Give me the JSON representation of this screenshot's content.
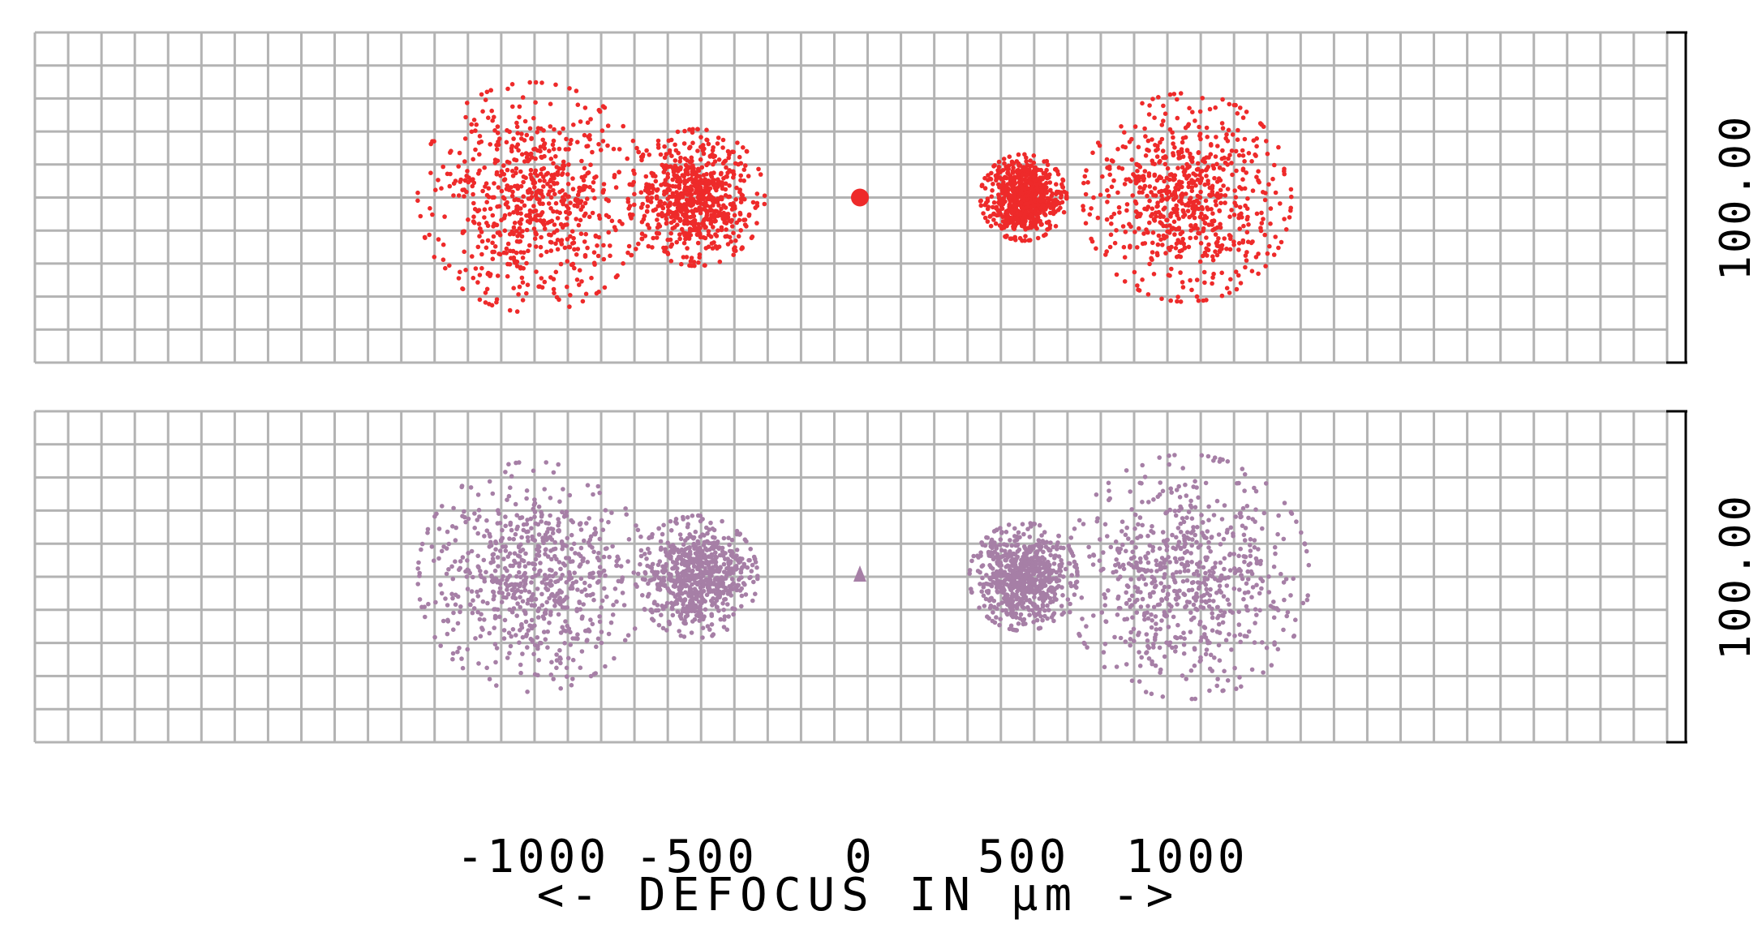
{
  "chart_data": {
    "type": "scatter",
    "xlabel": "<- DEFOCUS IN μm ->",
    "x_ticks": [
      -1000,
      -500,
      0,
      500,
      1000
    ],
    "x_tick_labels": [
      "-1000",
      "-500",
      "0",
      "500",
      "1000"
    ],
    "panels": [
      {
        "scale_label": "100.00",
        "color": "#ee2a2a",
        "spots": [
          {
            "defocus": -1000,
            "spread": 160
          },
          {
            "defocus": -500,
            "spread": 95
          },
          {
            "defocus": 0,
            "spread": 0
          },
          {
            "defocus": 500,
            "spread": 60
          },
          {
            "defocus": 1000,
            "spread": 145
          }
        ]
      },
      {
        "scale_label": "100.00",
        "color": "#a67fa6",
        "spots": [
          {
            "defocus": -1000,
            "spread": 160
          },
          {
            "defocus": -500,
            "spread": 85
          },
          {
            "defocus": 0,
            "spread": 0
          },
          {
            "defocus": 500,
            "spread": 75
          },
          {
            "defocus": 1000,
            "spread": 170
          }
        ]
      }
    ],
    "grid": true
  }
}
